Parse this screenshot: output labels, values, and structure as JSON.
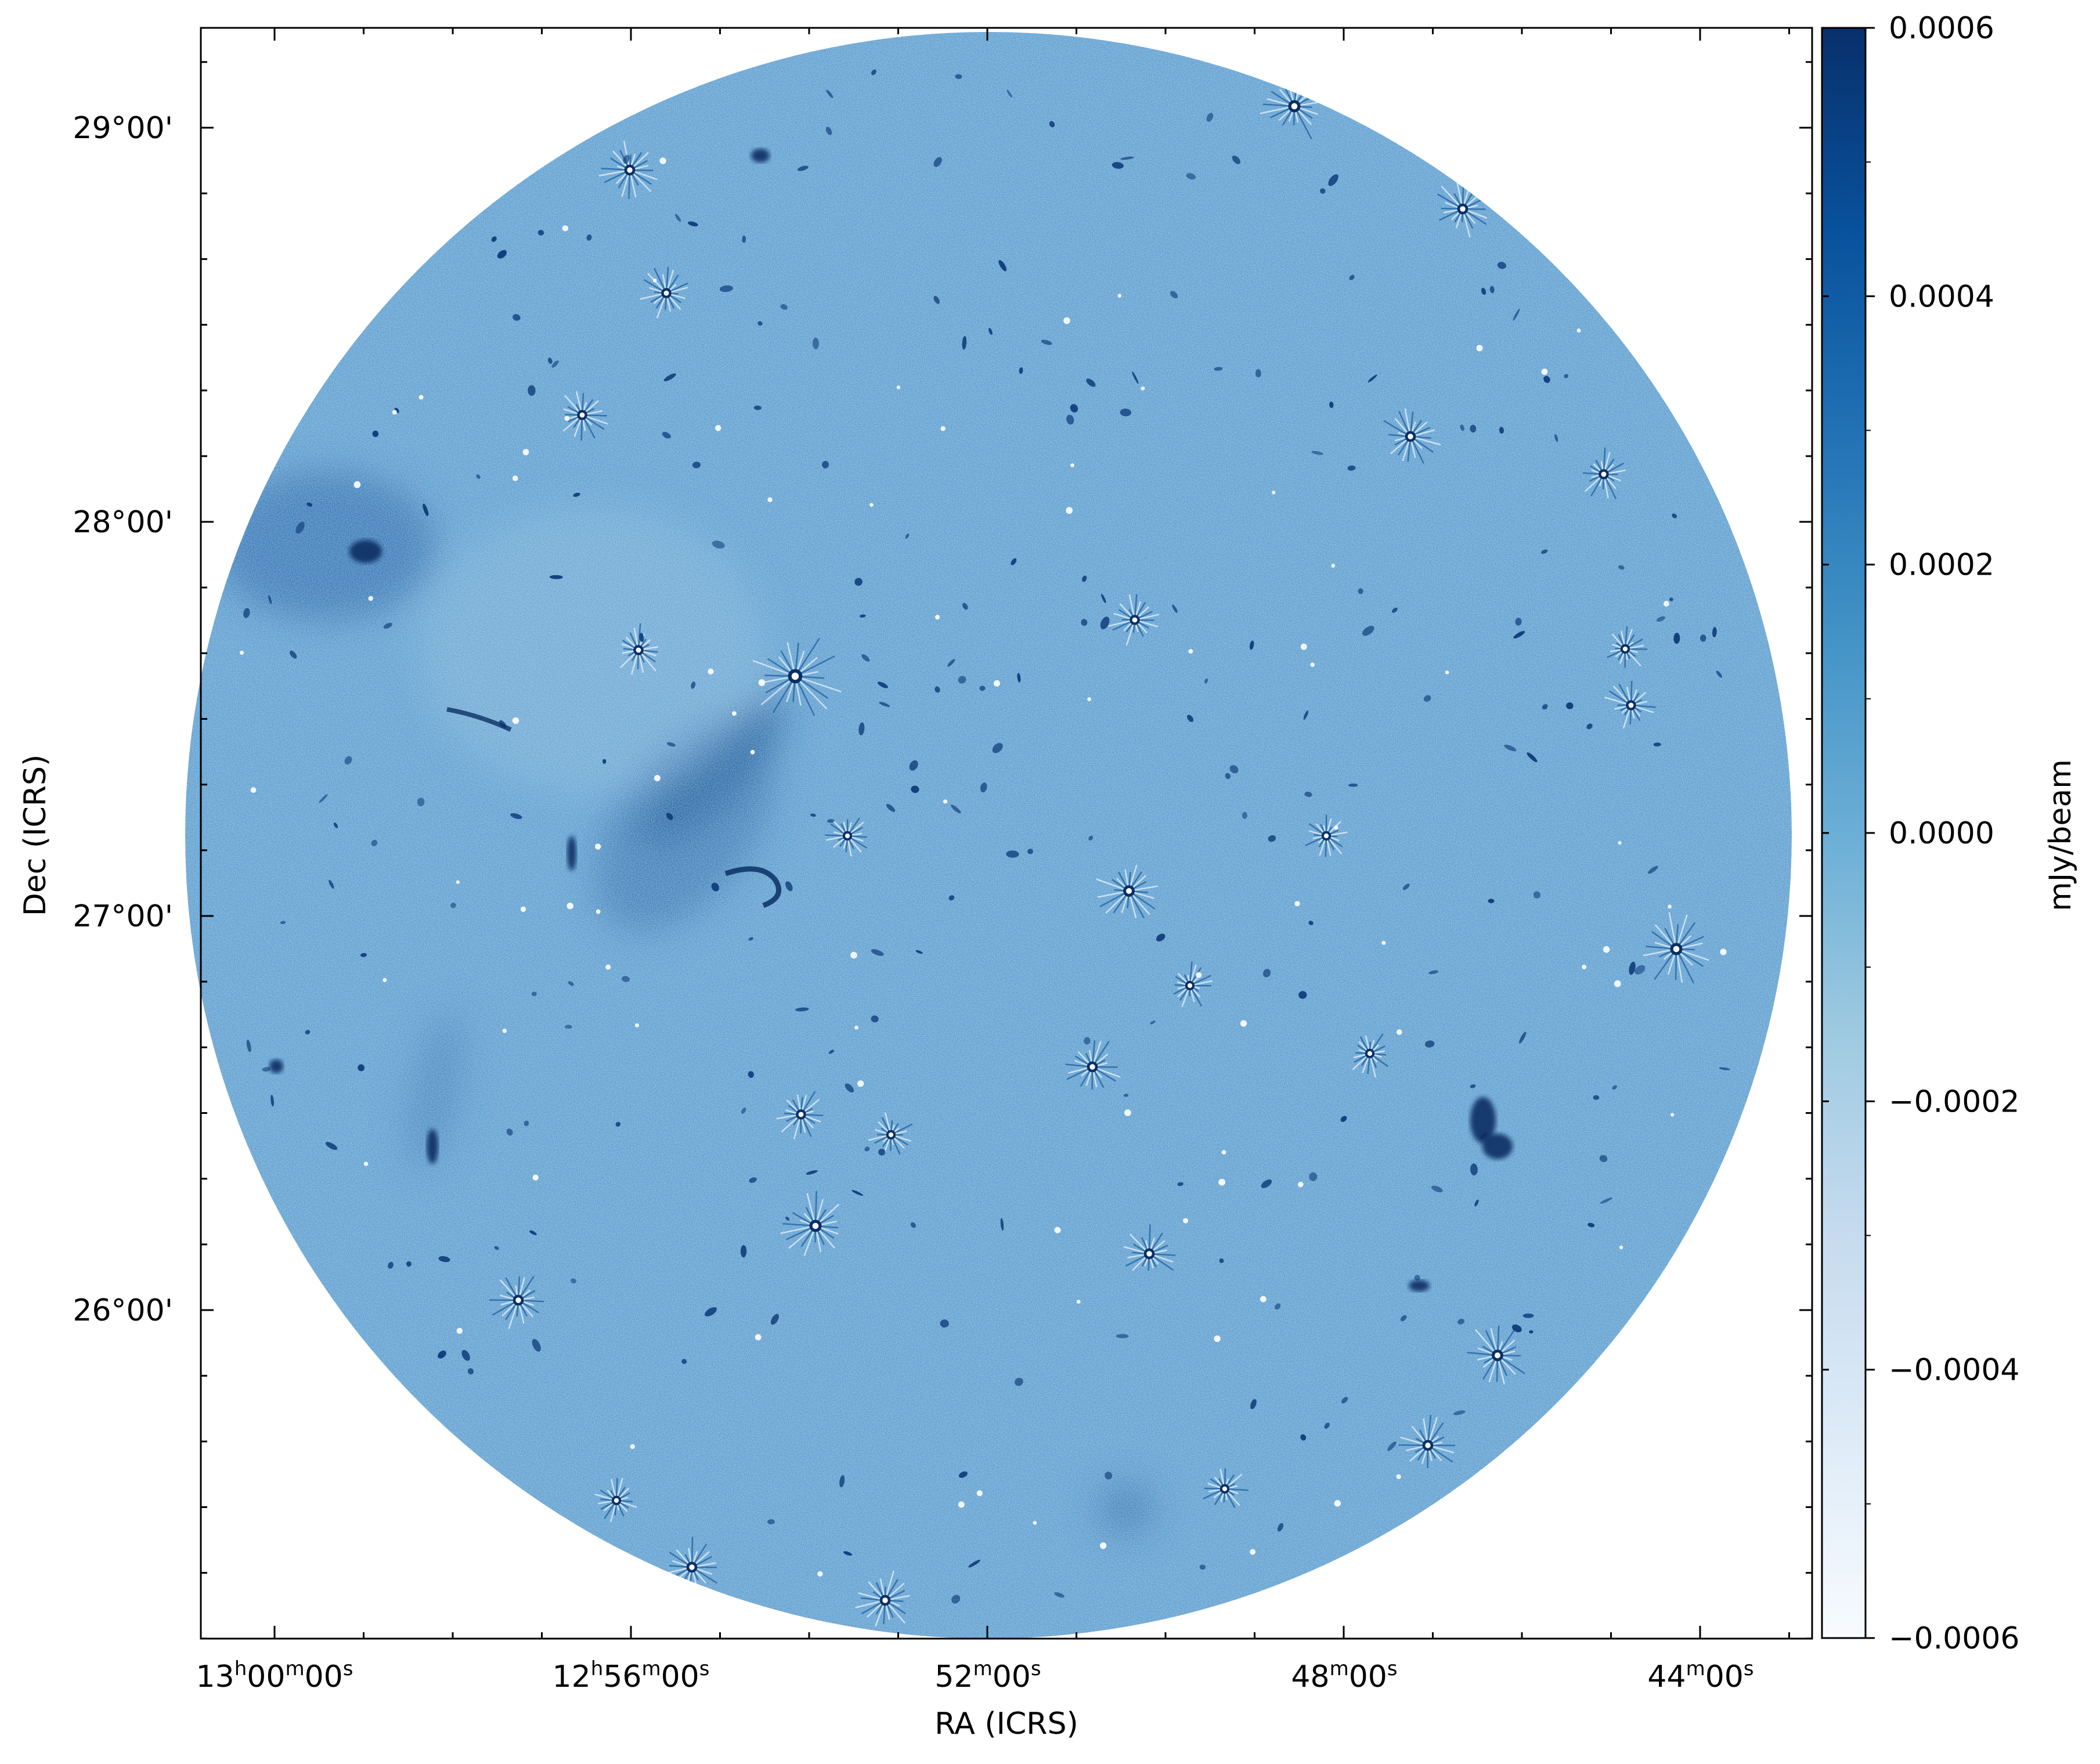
{
  "figure": {
    "xlabel": "RA (ICRS)",
    "ylabel": "Dec (ICRS)",
    "x_ticks": [
      {
        "h": "13",
        "m": "00",
        "s": "00"
      },
      {
        "h": "12",
        "m": "56",
        "s": "00"
      },
      {
        "h": "",
        "m": "52",
        "s": "00"
      },
      {
        "h": "",
        "m": "48",
        "s": "00"
      },
      {
        "h": "",
        "m": "44",
        "s": "00"
      }
    ],
    "y_ticks": [
      "29°00'",
      "28°00'",
      "27°00'",
      "26°00'"
    ],
    "colors": {
      "field_base": "#5e9fd0",
      "field_dark": "#1f5f9e",
      "source_dark": "#0b2f64",
      "frame": "#000000"
    },
    "image_description": "Radio continuum map: circular field of view filled with blue noise, scattered point sources with radial sidelobe patterns and extended diffuse emission"
  },
  "colorbar": {
    "label": "mJy/beam",
    "cmap": "Blues",
    "range": [
      -0.0006,
      0.0006
    ],
    "ticks": [
      "0.0006",
      "0.0004",
      "0.0002",
      "0.0000",
      "−0.0002",
      "−0.0004",
      "−0.0006"
    ],
    "tick_values": [
      0.0006,
      0.0004,
      0.0002,
      0.0,
      -0.0002,
      -0.0004,
      -0.0006
    ]
  }
}
